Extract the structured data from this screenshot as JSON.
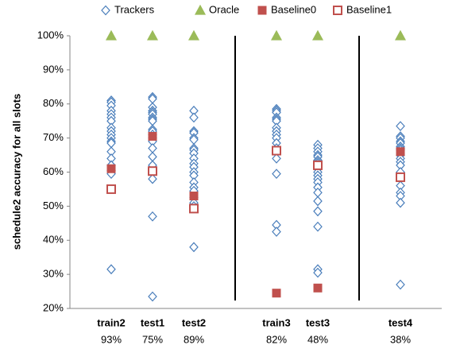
{
  "chart_data": {
    "type": "strip",
    "y_label": "schedule2 accuracy for all slots",
    "categories": [
      "train2",
      "test1",
      "test2",
      "train3",
      "test3",
      "test4"
    ],
    "subcategories": [
      "93%",
      "75%",
      "89%",
      "82%",
      "48%",
      "38%"
    ],
    "ylim": [
      20,
      100
    ],
    "yticks": [
      {
        "value": 20,
        "label": "20%"
      },
      {
        "value": 30,
        "label": "30%"
      },
      {
        "value": 40,
        "label": "40%"
      },
      {
        "value": 50,
        "label": "50%"
      },
      {
        "value": 60,
        "label": "60%"
      },
      {
        "value": 70,
        "label": "70%"
      },
      {
        "value": 80,
        "label": "80%"
      },
      {
        "value": 90,
        "label": "90%"
      },
      {
        "value": 100,
        "label": "100%"
      }
    ],
    "series": [
      {
        "name": "Trackers",
        "color": "#4a7ebb",
        "marker": "diamond",
        "filled": false,
        "values": [
          [
            81,
            80.5,
            79.5,
            78,
            77,
            76,
            75,
            73,
            72,
            71,
            70,
            69,
            68.5,
            66,
            64,
            62,
            60.5,
            59.5,
            31.5
          ],
          [
            82,
            81.5,
            79,
            78,
            77.5,
            77,
            76,
            75.5,
            75,
            72.5,
            72,
            71,
            70,
            69,
            67,
            64.5,
            62,
            58,
            47,
            23.5
          ],
          [
            78,
            76,
            72,
            71.5,
            70,
            69.5,
            67,
            66.5,
            65.5,
            64,
            62.5,
            61.5,
            60,
            59,
            57,
            55.5,
            54.5,
            52.5,
            51,
            50,
            38
          ],
          [
            78.5,
            78,
            77.5,
            76,
            75.5,
            75,
            73,
            72,
            71,
            70,
            68.5,
            67,
            66,
            64,
            59.5,
            44.5,
            42.5
          ],
          [
            68,
            67,
            66,
            65,
            64.5,
            63.5,
            63,
            62.5,
            61,
            60,
            59,
            58,
            57,
            55.5,
            54,
            51.5,
            48.5,
            44,
            31.5,
            30.5
          ],
          [
            73.5,
            70.5,
            70,
            69,
            68.5,
            67.5,
            67,
            66.5,
            65,
            64,
            63,
            62,
            60,
            58.5,
            56,
            54,
            53,
            51,
            27
          ]
        ]
      },
      {
        "name": "Oracle",
        "color": "#9bbb59",
        "marker": "triangle",
        "filled": true,
        "values": [
          100,
          100,
          100,
          100,
          100,
          100
        ]
      },
      {
        "name": "Baseline0",
        "color": "#c0504d",
        "marker": "square",
        "filled": true,
        "values": [
          61,
          70.5,
          53,
          24.5,
          26,
          66
        ]
      },
      {
        "name": "Baseline1",
        "color": "#c0504d",
        "marker": "square",
        "filled": false,
        "values": [
          55,
          60.3,
          49.3,
          66.3,
          62,
          58.5
        ]
      }
    ]
  }
}
